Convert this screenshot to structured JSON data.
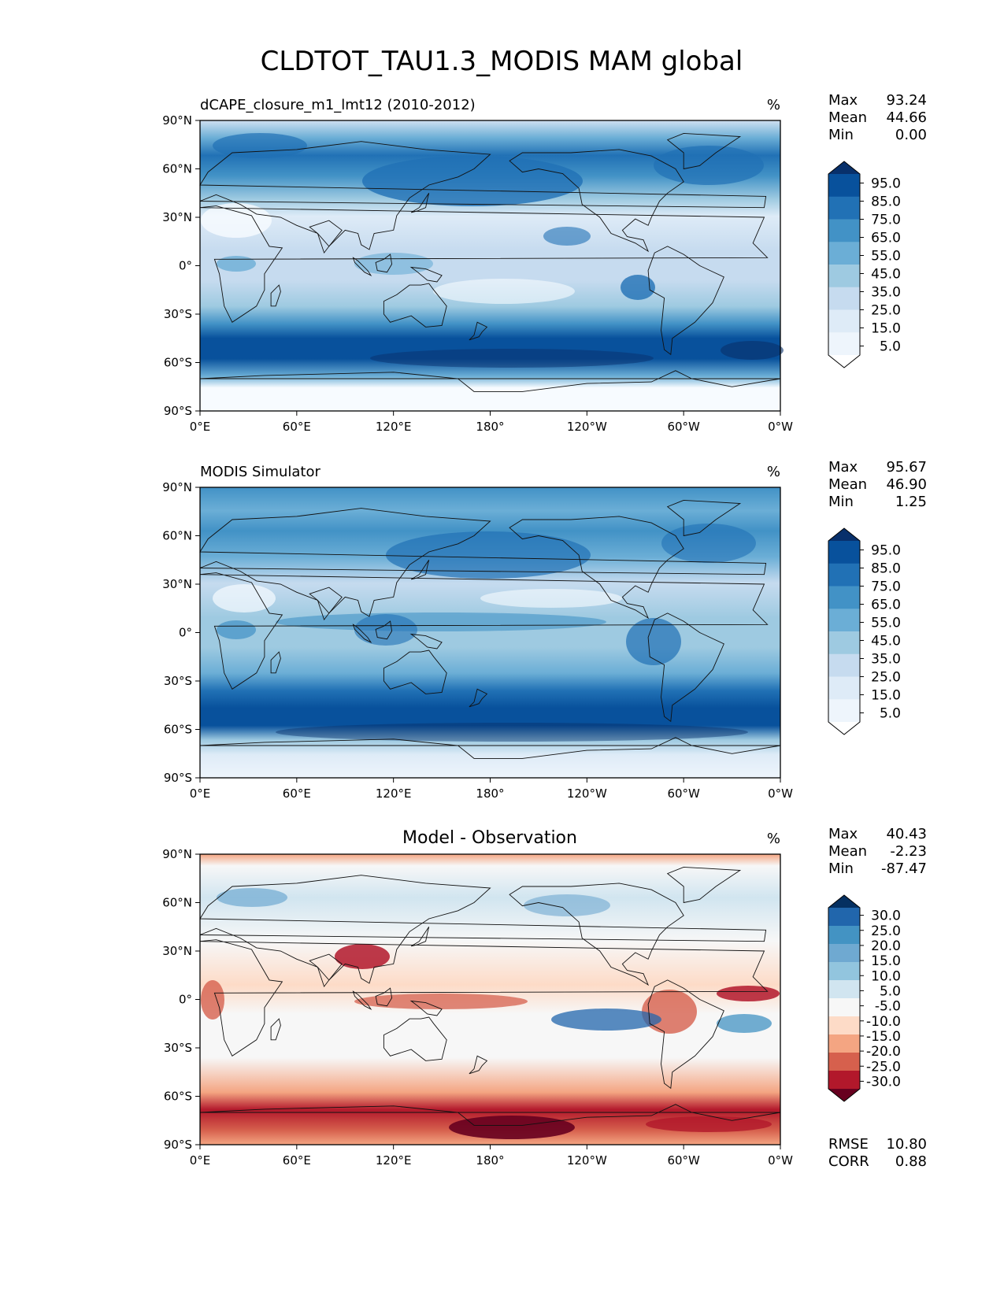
{
  "title": "CLDTOT_TAU1.3_MODIS MAM global",
  "x_ticks": [
    "0°E",
    "60°E",
    "120°E",
    "180°",
    "120°W",
    "60°W",
    "0°W"
  ],
  "y_ticks": [
    "90°N",
    "60°N",
    "30°N",
    "0°",
    "30°S",
    "60°S",
    "90°S"
  ],
  "panels": [
    {
      "id": "test",
      "left_title": "dCAPE_closure_m1_lmt12 (2010-2012)",
      "center_title": "",
      "units": "%",
      "stats": [
        {
          "label": "Max",
          "value": "93.24"
        },
        {
          "label": "Mean",
          "value": "44.66"
        },
        {
          "label": "Min",
          "value": "0.00"
        }
      ],
      "colorbar": {
        "labels": [
          "95.0",
          "85.0",
          "75.0",
          "65.0",
          "55.0",
          "45.0",
          "35.0",
          "25.0",
          "15.0",
          "5.0"
        ],
        "colors": [
          "#08306b",
          "#08519c",
          "#2171b5",
          "#4292c6",
          "#6baed6",
          "#9ecae1",
          "#c6dbef",
          "#deebf7",
          "#eef5fc",
          "#ffffff"
        ]
      }
    },
    {
      "id": "ref",
      "left_title": "MODIS Simulator",
      "center_title": "",
      "units": "%",
      "stats": [
        {
          "label": "Max",
          "value": "95.67"
        },
        {
          "label": "Mean",
          "value": "46.90"
        },
        {
          "label": "Min",
          "value": "1.25"
        }
      ],
      "colorbar": {
        "labels": [
          "95.0",
          "85.0",
          "75.0",
          "65.0",
          "55.0",
          "45.0",
          "35.0",
          "25.0",
          "15.0",
          "5.0"
        ],
        "colors": [
          "#08306b",
          "#08519c",
          "#2171b5",
          "#4292c6",
          "#6baed6",
          "#9ecae1",
          "#c6dbef",
          "#deebf7",
          "#eef5fc",
          "#ffffff"
        ]
      }
    },
    {
      "id": "diff",
      "left_title": "",
      "center_title": "Model - Observation",
      "units": "%",
      "stats": [
        {
          "label": "Max",
          "value": "40.43"
        },
        {
          "label": "Mean",
          "value": "-2.23"
        },
        {
          "label": "Min",
          "value": "-87.47"
        }
      ],
      "colorbar": {
        "labels": [
          "30.0",
          "25.0",
          "20.0",
          "15.0",
          "10.0",
          "5.0",
          "-5.0",
          "-10.0",
          "-15.0",
          "-20.0",
          "-25.0",
          "-30.0"
        ],
        "colors": [
          "#053061",
          "#2166ac",
          "#4393c3",
          "#6fa9d1",
          "#92c5de",
          "#d1e5f0",
          "#f7f7f7",
          "#fddbc7",
          "#f4a582",
          "#d6604d",
          "#b2182b",
          "#67001f"
        ]
      },
      "extra_stats": [
        {
          "label": "RMSE",
          "value": "10.80"
        },
        {
          "label": "CORR",
          "value": "0.88"
        }
      ]
    }
  ]
}
